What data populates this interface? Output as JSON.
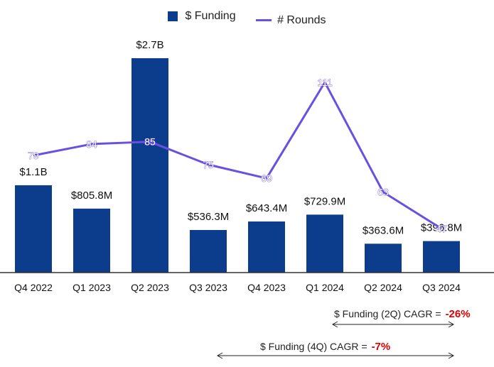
{
  "chart_data": {
    "type": "bar+line",
    "categories": [
      "Q4 2022",
      "Q1 2023",
      "Q2 2023",
      "Q3 2023",
      "Q4 2023",
      "Q1 2024",
      "Q2 2024",
      "Q3 2024"
    ],
    "series": [
      {
        "name": "$ Funding",
        "type": "bar",
        "unit": "$M",
        "values": [
          1100,
          805.8,
          2700,
          536.3,
          643.4,
          729.9,
          363.6,
          396.8
        ],
        "labels": [
          "$1.1B",
          "$805.8M",
          "$2.7B",
          "$536.3M",
          "$643.4M",
          "$729.9M",
          "$363.6M",
          "$396.8M"
        ],
        "color": "#0b3d8c"
      },
      {
        "name": "# Rounds",
        "type": "line",
        "values": [
          79,
          84,
          85,
          75,
          69,
          111,
          63,
          47
        ],
        "labels": [
          "79",
          "84",
          "85",
          "75",
          "69",
          "111",
          "63",
          "47"
        ],
        "color": "#6a4fe0"
      }
    ],
    "legend": [
      "$ Funding",
      "# Rounds"
    ],
    "legend_position": "top-center",
    "ylim_bars": [
      0,
      2700
    ],
    "ylim_rounds": [
      0,
      140
    ]
  },
  "annotations": {
    "cagr_2q": {
      "label": "$ Funding (2Q) CAGR =",
      "value": "-26%"
    },
    "cagr_4q": {
      "label": "$ Funding (4Q) CAGR =",
      "value": "-7%"
    }
  },
  "colors": {
    "bar": "#0b3d8c",
    "line": "#6a4fe0",
    "negative": "#e00000",
    "axis": "#333333"
  }
}
